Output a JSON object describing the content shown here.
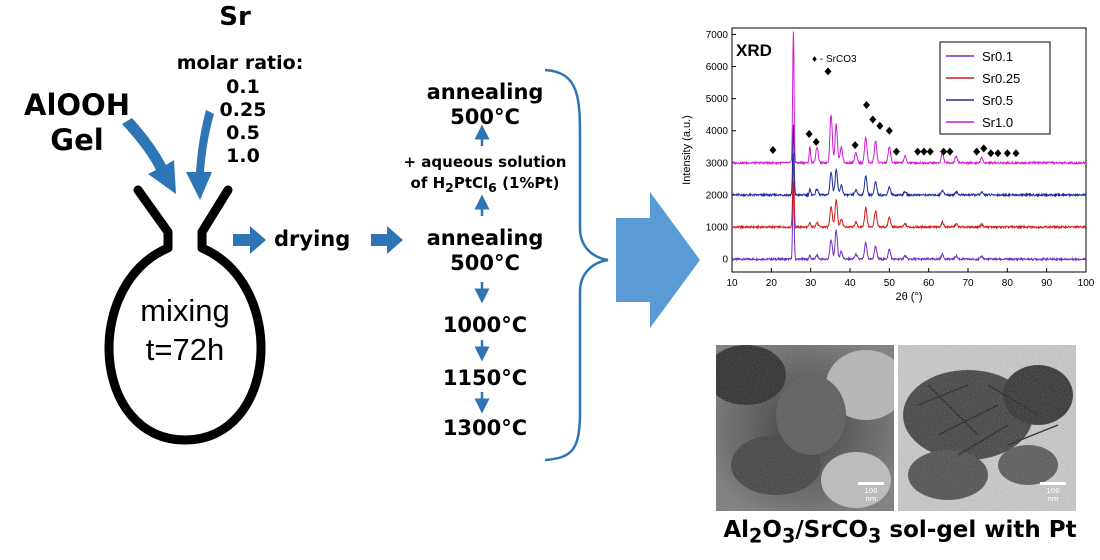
{
  "inputs": {
    "sr_label": "Sr",
    "molar_ratio_label": "molar ratio:",
    "ratios": [
      "0.1",
      "0.25",
      "0.5",
      "1.0"
    ],
    "alooh_line1": "AlOOH",
    "alooh_line2": "Gel"
  },
  "flask": {
    "line1": "mixing",
    "line2": "t=72h"
  },
  "drying": "drying",
  "annealing": {
    "top_line1": "annealing",
    "top_line2": "500°C",
    "aqueous_line1": "+ aqueous solution",
    "aqueous_pre": "of H",
    "aqueous_sub1": "2",
    "aqueous_mid": "PtCl",
    "aqueous_sub2": "6",
    "aqueous_post": " (1%Pt)",
    "mid_line1": "annealing",
    "mid_line2": "500°C",
    "steps": [
      "1000°C",
      "1150°C",
      "1300°C"
    ]
  },
  "colors": {
    "arrow_blue": "#2e75b6",
    "big_arrow_blue": "#5b9bd5",
    "brace_blue": "#2e75b6"
  },
  "chart_data": {
    "type": "line",
    "title": "XRD",
    "marker_legend": "♦ - SrCO3",
    "xlabel": "2θ (°)",
    "ylabel": "Intensity (a.u.)",
    "xlim": [
      10,
      100
    ],
    "ylim": [
      -400,
      7200
    ],
    "xticks": [
      10,
      20,
      30,
      40,
      50,
      60,
      70,
      80,
      90,
      100
    ],
    "yticks": [
      0,
      1000,
      2000,
      3000,
      4000,
      5000,
      6000,
      7000
    ],
    "legend_position": "top-right",
    "series": [
      {
        "name": "Sr0.1",
        "color": "#6b2fc4",
        "offset": 0
      },
      {
        "name": "Sr0.25",
        "color": "#d01c1c",
        "offset": 1000
      },
      {
        "name": "Sr0.5",
        "color": "#1a2a9a",
        "offset": 2000
      },
      {
        "name": "Sr1.0",
        "color": "#d41ad4",
        "offset": 3000
      }
    ],
    "alumina_peaks": [
      {
        "x": 25.6,
        "h": [
          2400,
          2300,
          2200,
          4100
        ]
      },
      {
        "x": 29.8,
        "h": [
          120,
          140,
          180,
          500
        ]
      },
      {
        "x": 31.6,
        "h": [
          120,
          140,
          180,
          500
        ]
      },
      {
        "x": 35.2,
        "h": [
          600,
          650,
          700,
          1500
        ]
      },
      {
        "x": 36.5,
        "h": [
          900,
          850,
          800,
          1200
        ]
      },
      {
        "x": 37.8,
        "h": [
          250,
          250,
          300,
          500
        ]
      },
      {
        "x": 41.5,
        "h": [
          150,
          150,
          150,
          300
        ]
      },
      {
        "x": 44.0,
        "h": [
          500,
          600,
          600,
          800
        ]
      },
      {
        "x": 46.5,
        "h": [
          400,
          500,
          400,
          700
        ]
      },
      {
        "x": 50.0,
        "h": [
          300,
          300,
          250,
          500
        ]
      },
      {
        "x": 54.0,
        "h": [
          100,
          100,
          100,
          200
        ]
      },
      {
        "x": 63.5,
        "h": [
          150,
          150,
          150,
          300
        ]
      },
      {
        "x": 67.0,
        "h": [
          100,
          100,
          100,
          200
        ]
      },
      {
        "x": 73.5,
        "h": [
          80,
          80,
          80,
          150
        ]
      }
    ],
    "srco3_markers": [
      {
        "x": 20.4,
        "y": 3400
      },
      {
        "x": 29.6,
        "y": 3900
      },
      {
        "x": 31.4,
        "y": 3650
      },
      {
        "x": 34.4,
        "y": 5850
      },
      {
        "x": 41.3,
        "y": 3550
      },
      {
        "x": 44.2,
        "y": 4800
      },
      {
        "x": 45.8,
        "y": 4350
      },
      {
        "x": 47.6,
        "y": 4150
      },
      {
        "x": 50.0,
        "y": 4000
      },
      {
        "x": 51.8,
        "y": 3350
      },
      {
        "x": 57.2,
        "y": 3350
      },
      {
        "x": 58.8,
        "y": 3350
      },
      {
        "x": 60.4,
        "y": 3350
      },
      {
        "x": 63.8,
        "y": 3350
      },
      {
        "x": 65.4,
        "y": 3350
      },
      {
        "x": 72.2,
        "y": 3350
      },
      {
        "x": 74.0,
        "y": 3450
      },
      {
        "x": 75.8,
        "y": 3300
      },
      {
        "x": 77.6,
        "y": 3300
      },
      {
        "x": 80.0,
        "y": 3300
      },
      {
        "x": 82.2,
        "y": 3300
      }
    ]
  },
  "tem": {
    "scale_label": "100 nm"
  },
  "final_caption": {
    "p1": "Al",
    "s1": "2",
    "p2": "O",
    "s2": "3",
    "p3": "/SrCO",
    "s3": "3",
    "p4": " sol-gel with Pt"
  }
}
